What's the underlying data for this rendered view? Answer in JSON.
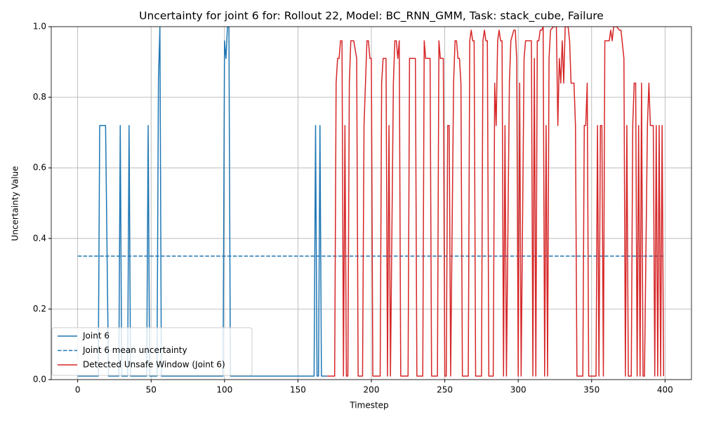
{
  "chart_data": {
    "type": "line",
    "title": "Uncertainty for joint 6 for: Rollout 22, Model: BC_RNN_GMM, Task: stack_cube, Failure",
    "xlabel": "Timestep",
    "ylabel": "Uncertainty Value",
    "xlim": [
      -18,
      418
    ],
    "ylim": [
      0,
      1
    ],
    "xticks": [
      0,
      50,
      100,
      150,
      200,
      250,
      300,
      350,
      400
    ],
    "yticks": [
      {
        "value": 0,
        "label": "0.0"
      },
      {
        "value": 0.2,
        "label": "0.2"
      },
      {
        "value": 0.4,
        "label": "0.4"
      },
      {
        "value": 0.6,
        "label": "0.6"
      },
      {
        "value": 0.8,
        "label": "0.8"
      },
      {
        "value": 1,
        "label": "1.0"
      }
    ],
    "grid": true,
    "legend": "lower left",
    "series": [
      {
        "name": "Joint 6",
        "color": "#1f77b4",
        "dashed": false,
        "x": [
          0,
          14,
          15,
          19,
          21,
          28,
          29,
          30,
          34,
          35,
          36,
          47,
          48,
          49,
          54,
          55,
          56,
          57,
          99,
          100,
          101,
          102,
          103,
          104,
          161,
          162,
          163,
          164,
          165,
          166,
          170
        ],
        "values": [
          0.01,
          0.01,
          0.72,
          0.72,
          0.01,
          0.01,
          0.72,
          0.01,
          0.01,
          0.72,
          0.01,
          0.01,
          0.72,
          0.01,
          0.01,
          0.85,
          1.0,
          0.01,
          0.01,
          0.96,
          0.91,
          1.0,
          1.0,
          0.01,
          0.01,
          0.72,
          0.01,
          0.01,
          0.72,
          0.01,
          0.01
        ]
      },
      {
        "name": "Joint 6 mean uncertainty",
        "color": "#1f77b4",
        "dashed": true,
        "x": [
          0,
          399
        ],
        "values": [
          0.35,
          0.35
        ]
      },
      {
        "name": "Detected Unsafe Window (Joint 6)",
        "color": "#d62728",
        "dashed": false,
        "x": [
          170,
          175,
          176,
          177,
          178,
          179,
          180,
          181,
          182,
          183,
          184,
          185,
          186,
          188,
          190,
          191,
          194,
          195,
          196,
          197,
          198,
          199,
          200,
          201,
          206,
          207,
          208,
          210,
          211,
          212,
          213,
          215,
          216,
          217,
          218,
          219,
          220,
          225,
          226,
          230,
          231,
          235,
          236,
          237,
          240,
          241,
          245,
          246,
          247,
          249,
          250,
          251,
          252,
          253,
          254,
          256,
          257,
          258,
          259,
          260,
          261,
          262,
          266,
          267,
          268,
          269,
          270,
          271,
          275,
          276,
          277,
          278,
          279,
          280,
          283,
          284,
          285,
          286,
          287,
          288,
          289,
          290,
          291,
          292,
          294,
          295,
          297,
          298,
          299,
          300,
          301,
          302,
          304,
          305,
          309,
          310,
          311,
          312,
          313,
          314,
          315,
          316,
          317,
          318,
          319,
          320,
          321,
          322,
          324,
          326,
          327,
          328,
          329,
          330,
          331,
          332,
          334,
          335,
          336,
          338,
          339,
          340,
          344,
          345,
          346,
          347,
          348,
          353,
          354,
          355,
          356,
          357,
          358,
          359,
          362,
          363,
          364,
          365,
          367,
          369,
          370,
          372,
          373,
          374,
          375,
          377,
          378,
          379,
          380,
          381,
          382,
          383,
          384,
          385,
          386,
          388,
          389,
          390,
          392,
          393,
          394,
          395,
          396,
          397,
          398,
          399
        ],
        "values": [
          0.01,
          0.01,
          0.84,
          0.91,
          0.91,
          0.96,
          0.96,
          0.01,
          0.72,
          0.01,
          0.01,
          0.84,
          0.96,
          0.96,
          0.91,
          0.01,
          0.01,
          0.72,
          0.84,
          0.96,
          0.96,
          0.91,
          0.91,
          0.01,
          0.01,
          0.84,
          0.91,
          0.91,
          0.01,
          0.72,
          0.01,
          0.84,
          0.96,
          0.96,
          0.91,
          0.96,
          0.01,
          0.01,
          0.91,
          0.91,
          0.01,
          0.01,
          0.96,
          0.91,
          0.91,
          0.01,
          0.01,
          0.96,
          0.91,
          0.91,
          0.01,
          0.01,
          0.72,
          0.72,
          0.01,
          0.84,
          0.96,
          0.96,
          0.91,
          0.91,
          0.84,
          0.01,
          0.01,
          0.96,
          0.99,
          0.96,
          0.96,
          0.01,
          0.01,
          0.96,
          0.99,
          0.96,
          0.96,
          0.01,
          0.01,
          0.84,
          0.72,
          0.96,
          0.99,
          0.96,
          0.96,
          0.01,
          0.72,
          0.01,
          0.84,
          0.96,
          0.99,
          0.99,
          0.91,
          0.01,
          0.84,
          0.01,
          0.91,
          0.96,
          0.96,
          0.01,
          0.91,
          0.01,
          0.96,
          0.96,
          0.99,
          0.99,
          1.0,
          0.01,
          0.72,
          0.01,
          0.91,
          0.99,
          1.0,
          1.0,
          0.72,
          0.91,
          0.84,
          0.96,
          0.84,
          1.0,
          1.0,
          0.96,
          0.84,
          0.84,
          0.72,
          0.01,
          0.01,
          0.72,
          0.72,
          0.84,
          0.01,
          0.01,
          0.72,
          0.01,
          0.72,
          0.72,
          0.01,
          0.96,
          0.96,
          0.99,
          0.96,
          1.0,
          1.0,
          0.99,
          0.99,
          0.91,
          0.01,
          0.72,
          0.01,
          0.01,
          0.72,
          0.84,
          0.84,
          0.01,
          0.72,
          0.01,
          0.84,
          0.01,
          0.01,
          0.72,
          0.84,
          0.72,
          0.72,
          0.01,
          0.72,
          0.01,
          0.72,
          0.01,
          0.72,
          0.01
        ]
      }
    ]
  }
}
